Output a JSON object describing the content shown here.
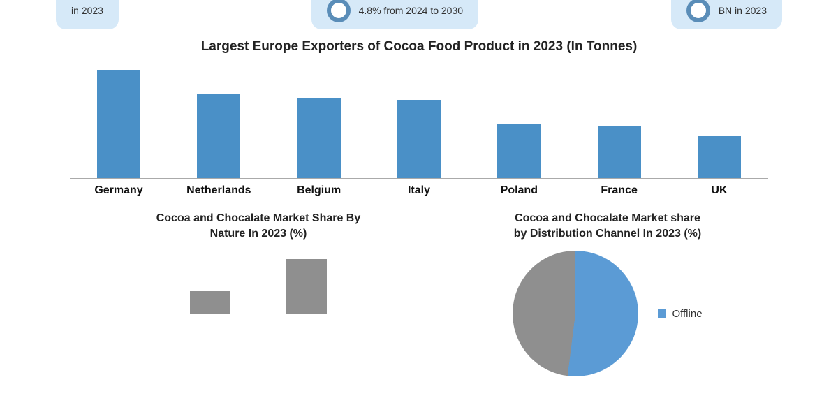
{
  "cards": {
    "left": "in 2023",
    "mid": "4.8% from 2024 to 2030",
    "right": "BN in 2023"
  },
  "bar_chart": {
    "type": "bar",
    "title": "Largest Europe Exporters of Cocoa Food Product in 2023 (In Tonnes)",
    "categories": [
      "Germany",
      "Netherlands",
      "Belgium",
      "Italy",
      "Poland",
      "France",
      "UK"
    ],
    "values": [
      155,
      120,
      115,
      112,
      78,
      74,
      60
    ],
    "ymax": 160,
    "bar_color": "#4a90c7",
    "axis_color": "#aaaaaa",
    "label_fontsize": 16,
    "label_weight": "bold",
    "title_fontsize": 19,
    "background_color": "#ffffff"
  },
  "nature_chart": {
    "type": "bar",
    "title_line1": "Cocoa and Chocalate Market Share By",
    "title_line2": "Nature In 2023 (%)",
    "values": [
      32,
      78
    ],
    "ymax": 90,
    "bar_color": "#8f8f8f"
  },
  "dist_chart": {
    "type": "pie",
    "title_line1": "Cocoa and Chocalate Market share",
    "title_line2": "by Distribution Channel In 2023 (%)",
    "slices": [
      {
        "label": "Offline",
        "value": 52,
        "color": "#5b9bd5"
      },
      {
        "label": "",
        "value": 48,
        "color": "#8f8f8f"
      }
    ],
    "legend_label": "Offline",
    "legend_color": "#5b9bd5"
  },
  "card_bg": "#d6e9f8",
  "card_ring_color": "#5a8db8"
}
